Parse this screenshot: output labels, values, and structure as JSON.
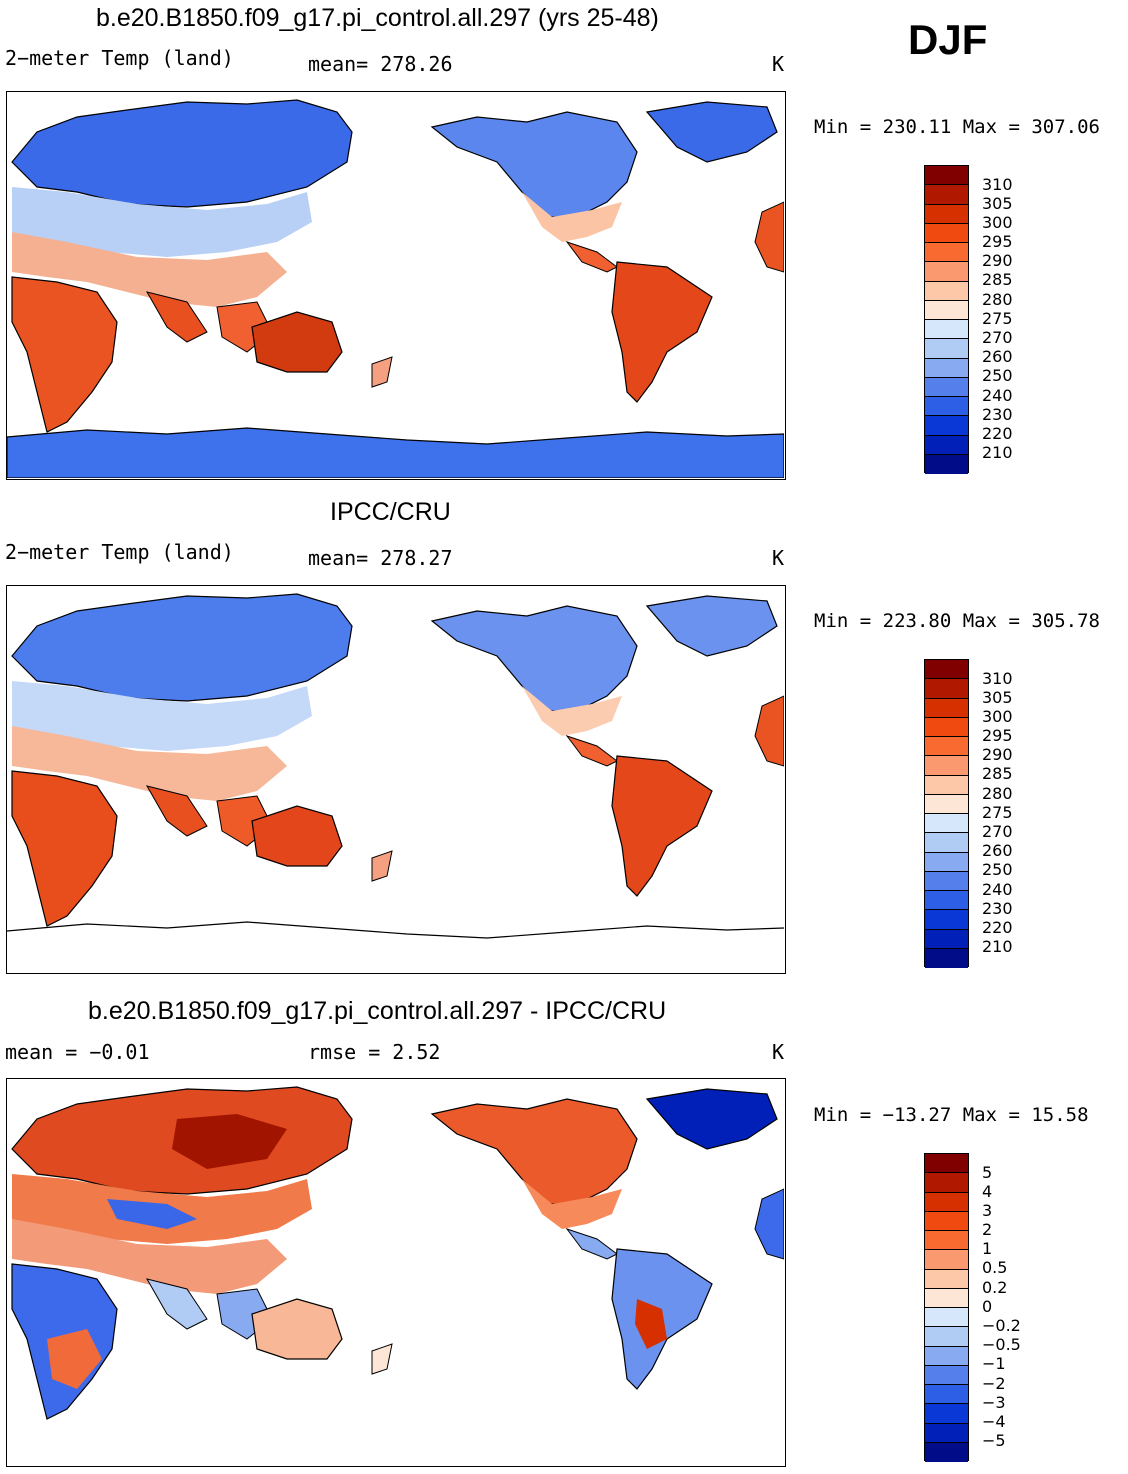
{
  "season": "DJF",
  "panels": [
    {
      "title": "b.e20.B1850.f09_g17.pi_control.all.297 (yrs 25-48)",
      "left_label": "2−meter Temp (land)",
      "center_label": "mean=  278.26",
      "units": "K",
      "minmax": "Min = 230.11 Max = 307.06",
      "colorbar_labels": [
        "310",
        "305",
        "300",
        "295",
        "290",
        "285",
        "280",
        "275",
        "270",
        "260",
        "250",
        "240",
        "230",
        "220",
        "210"
      ]
    },
    {
      "title": "IPCC/CRU",
      "left_label": "2−meter Temp (land)",
      "center_label": "mean=  278.27",
      "units": "K",
      "minmax": "Min = 223.80 Max = 305.78",
      "colorbar_labels": [
        "310",
        "305",
        "300",
        "295",
        "290",
        "285",
        "280",
        "275",
        "270",
        "260",
        "250",
        "240",
        "230",
        "220",
        "210"
      ]
    },
    {
      "title": "b.e20.B1850.f09_g17.pi_control.all.297 - IPCC/CRU",
      "left_label": "mean =   −0.01",
      "center_label": "rmse =     2.52",
      "units": "K",
      "minmax": "Min = −13.27 Max =  15.58",
      "colorbar_labels": [
        "5",
        "4",
        "3",
        "2",
        "1",
        "0.5",
        "0.2",
        "0",
        "−0.2",
        "−0.5",
        "−1",
        "−2",
        "−3",
        "−4",
        "−5"
      ]
    }
  ],
  "colors": {
    "temp_scale": [
      "#800000",
      "#b01800",
      "#d63000",
      "#f04a10",
      "#f86a30",
      "#fa9870",
      "#fcc8a8",
      "#fde6d6",
      "#d6e6fb",
      "#b0ccf5",
      "#88aaf0",
      "#5580ec",
      "#2c5fe6",
      "#0a38d6",
      "#0020b8",
      "#000c88"
    ],
    "diff_scale": [
      "#800000",
      "#b01800",
      "#d63000",
      "#f04a10",
      "#f86a30",
      "#fa9870",
      "#fcc8a8",
      "#fde6d6",
      "#d6e6fb",
      "#b0ccf5",
      "#88aaf0",
      "#5580ec",
      "#2c5fe6",
      "#0a38d6",
      "#0020b8",
      "#000c88"
    ]
  }
}
